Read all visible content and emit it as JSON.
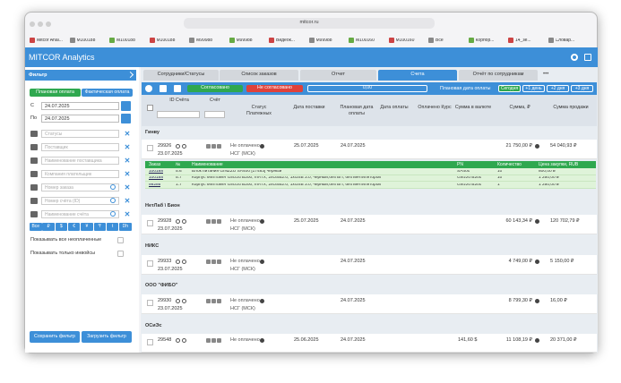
{
  "browser": {
    "url": "mitcor.ru",
    "bookmarks": [
      "Mitcor Anal...",
      "M100188",
      "M100188",
      "M100188",
      "M99988",
      "M99988",
      "Видеок...",
      "M99988",
      "M100160",
      "M100160",
      "Все",
      "Корпор...",
      "14_зе...",
      "Словар..."
    ]
  },
  "app": {
    "title": "MITCOR Analytics"
  },
  "filter": {
    "title": "Фильтр",
    "payment_modes": [
      "Плановая оплата",
      "Фактическая оплата"
    ],
    "from_label": "С",
    "from_date": "24.07.2025",
    "to_label": "По",
    "to_date": "24.07.2025",
    "fields": [
      "Статусы",
      "Поставщик",
      "Наименование поставщика",
      "Компания плательщик",
      "Номер заказа",
      "Номер счёта (ID)",
      "Наименование счёта"
    ],
    "currencies": [
      "Все",
      "₽",
      "$",
      "€",
      "¥",
      "₸",
      "t",
      "Dh"
    ],
    "options": [
      "Показывать все неоплаченные",
      "Показывать только инвойсы"
    ],
    "buttons": [
      "Сохранить фильтр",
      "Загрузить фильтр"
    ]
  },
  "tabs": {
    "items": [
      "Сотрудники/Статусы",
      "Список заказов",
      "Отчет",
      "Счета",
      "Отчёт по сотрудникам"
    ],
    "more": "•••"
  },
  "toolbar": {
    "approved": "Согласовано",
    "not_approved": "Не согласовано",
    "total": "0,00",
    "date_label": "Плановая дата оплаты",
    "quick_dates": [
      "Сегодня",
      "+1 день",
      "+2 дня",
      "+3 дня"
    ]
  },
  "table": {
    "columns": [
      "ID Счёта",
      "Счёт",
      "Статус Платежных",
      "Дата поставки",
      "Плановая дата оплаты",
      "Дата оплаты",
      "Оплачено Курс",
      "Сумма в валюте",
      "Сумма, ₽",
      "Сумма продажи"
    ],
    "groups": [
      {
        "name": "Гинву",
        "rows": [
          {
            "id": "29926",
            "date": "23.07.2025",
            "status": "Не оплачено",
            "company": "НСГ (МСК)",
            "delivery": "25.07.2025",
            "planned": "24.07.2025",
            "amount": "21 750,00 ₽",
            "sale": "54 040,93 ₽"
          }
        ],
        "items": {
          "columns": [
            "Заказ",
            "№",
            "Наименование",
            "PN",
            "Количество",
            "Цена закупки, RUB"
          ],
          "rows": [
            [
              "100188",
              "5.6",
              "Блок питания GINZZU SA400 [17483] черный",
              "SA400",
              "10",
              "800,00 ₽"
            ],
            [
              "100188",
              "5.7",
              "Корпус MiniTower Ginzzu B200, mATX, 2xUSB2.0, 1xUSB 3.0, черный,без БП, без вентиляторов",
              "Ginzzu B200",
              "10",
              "1 250,00 ₽"
            ],
            [
              "99286",
              "1.7",
              "Корпус MiniTower Ginzzu B200, mATX, 2xUSB2.0, 1xUSB 3.0, черный,без БП, без вентиляторов",
              "Ginzzu B200",
              "1",
              "1 250,00 ₽"
            ]
          ]
        }
      },
      {
        "name": "НетЛаб \\ Бион",
        "rows": [
          {
            "id": "29928",
            "date": "23.07.2025",
            "status": "Не оплачено",
            "company": "НСГ (МСК)",
            "delivery": "25.07.2025",
            "planned": "24.07.2025",
            "amount": "60 143,34 ₽",
            "sale": "120 702,79 ₽"
          }
        ]
      },
      {
        "name": "НИКС",
        "rows": [
          {
            "id": "29933",
            "date": "23.07.2025",
            "status": "Не оплачено",
            "company": "НСГ (МСК)",
            "planned": "24.07.2025",
            "amount": "4 749,00 ₽",
            "sale": "5 150,00 ₽"
          }
        ]
      },
      {
        "name": "ООО \"ФИБО\"",
        "rows": [
          {
            "id": "29930",
            "date": "23.07.2025",
            "status": "Не оплачено",
            "company": "НСГ (МСК)",
            "planned": "24.07.2025",
            "amount": "8 799,30 ₽",
            "sale": "16,00 ₽"
          }
        ]
      },
      {
        "name": "ОСиЭс",
        "rows": [
          {
            "id": "29548",
            "status": "Не оплачено",
            "delivery": "25.06.2025",
            "planned": "24.07.2025",
            "currency_amount": "141,60 $",
            "amount": "11 108,19 ₽",
            "sale": "20 371,00 ₽"
          }
        ]
      }
    ]
  }
}
